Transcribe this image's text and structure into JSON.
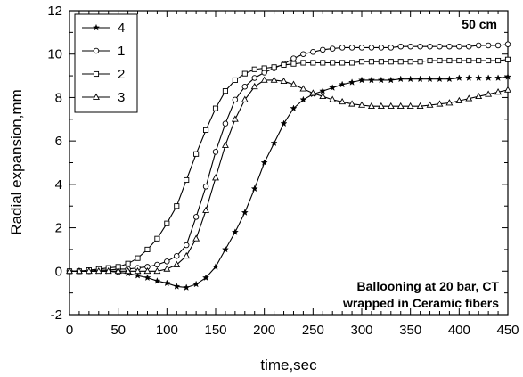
{
  "chart_data": {
    "type": "line",
    "title": "",
    "xlabel": "time,sec",
    "ylabel": "Radial expansion,mm",
    "xlim": [
      0,
      450
    ],
    "ylim": [
      -2,
      12
    ],
    "xticks": [
      0,
      50,
      100,
      150,
      200,
      250,
      300,
      350,
      400,
      450
    ],
    "yticks": [
      -2,
      0,
      2,
      4,
      6,
      8,
      10,
      12
    ],
    "grid": false,
    "legend_position": "top-left",
    "annotations": [
      {
        "text": "50 cm",
        "position": "top-right"
      },
      {
        "text": "Ballooning at 20 bar, CT",
        "position": "bottom-right"
      },
      {
        "text": "wrapped in Ceramic fibers",
        "position": "bottom-right"
      }
    ],
    "series": [
      {
        "name": "4",
        "marker": "star",
        "x": [
          0,
          10,
          20,
          30,
          40,
          50,
          60,
          70,
          80,
          90,
          100,
          110,
          120,
          130,
          140,
          150,
          160,
          170,
          180,
          190,
          200,
          210,
          220,
          230,
          240,
          250,
          260,
          270,
          280,
          290,
          300,
          310,
          320,
          330,
          340,
          350,
          360,
          370,
          380,
          390,
          400,
          410,
          420,
          430,
          440,
          450
        ],
        "y": [
          0,
          0,
          0,
          0,
          0,
          -0.05,
          -0.1,
          -0.2,
          -0.3,
          -0.45,
          -0.55,
          -0.7,
          -0.75,
          -0.6,
          -0.3,
          0.2,
          1.0,
          1.8,
          2.7,
          3.8,
          5.0,
          5.9,
          6.8,
          7.5,
          7.9,
          8.15,
          8.3,
          8.45,
          8.6,
          8.7,
          8.8,
          8.8,
          8.8,
          8.8,
          8.85,
          8.85,
          8.85,
          8.85,
          8.85,
          8.85,
          8.9,
          8.9,
          8.9,
          8.9,
          8.9,
          8.95
        ]
      },
      {
        "name": "1",
        "marker": "circle",
        "x": [
          0,
          10,
          20,
          30,
          40,
          50,
          60,
          70,
          80,
          90,
          100,
          110,
          120,
          130,
          140,
          150,
          160,
          170,
          180,
          190,
          200,
          210,
          220,
          230,
          240,
          250,
          260,
          270,
          280,
          290,
          300,
          310,
          320,
          330,
          340,
          350,
          360,
          370,
          380,
          390,
          400,
          410,
          420,
          430,
          440,
          450
        ],
        "y": [
          0,
          0,
          0,
          0.05,
          0.05,
          0.1,
          0.1,
          0.15,
          0.2,
          0.3,
          0.45,
          0.7,
          1.2,
          2.5,
          3.9,
          5.5,
          6.8,
          7.9,
          8.5,
          8.9,
          9.15,
          9.35,
          9.55,
          9.8,
          10.0,
          10.1,
          10.2,
          10.25,
          10.3,
          10.3,
          10.3,
          10.3,
          10.3,
          10.3,
          10.35,
          10.35,
          10.35,
          10.35,
          10.35,
          10.35,
          10.35,
          10.35,
          10.4,
          10.4,
          10.4,
          10.45
        ]
      },
      {
        "name": "2",
        "marker": "square",
        "x": [
          0,
          10,
          20,
          30,
          40,
          50,
          60,
          70,
          80,
          90,
          100,
          110,
          120,
          130,
          140,
          150,
          160,
          170,
          180,
          190,
          200,
          210,
          220,
          230,
          240,
          250,
          260,
          270,
          280,
          290,
          300,
          310,
          320,
          330,
          340,
          350,
          360,
          370,
          380,
          390,
          400,
          410,
          420,
          430,
          440,
          450
        ],
        "y": [
          0,
          0,
          0.05,
          0.1,
          0.15,
          0.2,
          0.35,
          0.6,
          1.0,
          1.5,
          2.2,
          3.0,
          4.2,
          5.4,
          6.5,
          7.5,
          8.3,
          8.8,
          9.1,
          9.3,
          9.35,
          9.4,
          9.5,
          9.55,
          9.6,
          9.6,
          9.6,
          9.6,
          9.6,
          9.6,
          9.65,
          9.65,
          9.65,
          9.65,
          9.65,
          9.65,
          9.65,
          9.7,
          9.7,
          9.7,
          9.7,
          9.7,
          9.7,
          9.7,
          9.7,
          9.75
        ]
      },
      {
        "name": "3",
        "marker": "triangle",
        "x": [
          0,
          10,
          20,
          30,
          40,
          50,
          60,
          70,
          80,
          90,
          100,
          110,
          120,
          130,
          140,
          150,
          160,
          170,
          180,
          190,
          200,
          210,
          220,
          230,
          240,
          250,
          260,
          270,
          280,
          290,
          300,
          310,
          320,
          330,
          340,
          350,
          360,
          370,
          380,
          390,
          400,
          410,
          420,
          430,
          440,
          450
        ],
        "y": [
          0,
          0,
          0,
          0,
          0,
          0,
          0,
          0,
          0,
          0,
          0.1,
          0.3,
          0.7,
          1.5,
          2.8,
          4.3,
          5.8,
          7.0,
          7.9,
          8.5,
          8.8,
          8.8,
          8.75,
          8.6,
          8.4,
          8.2,
          8.05,
          7.9,
          7.8,
          7.7,
          7.65,
          7.6,
          7.6,
          7.6,
          7.6,
          7.6,
          7.6,
          7.65,
          7.7,
          7.75,
          7.85,
          7.95,
          8.05,
          8.15,
          8.25,
          8.35
        ]
      }
    ]
  }
}
